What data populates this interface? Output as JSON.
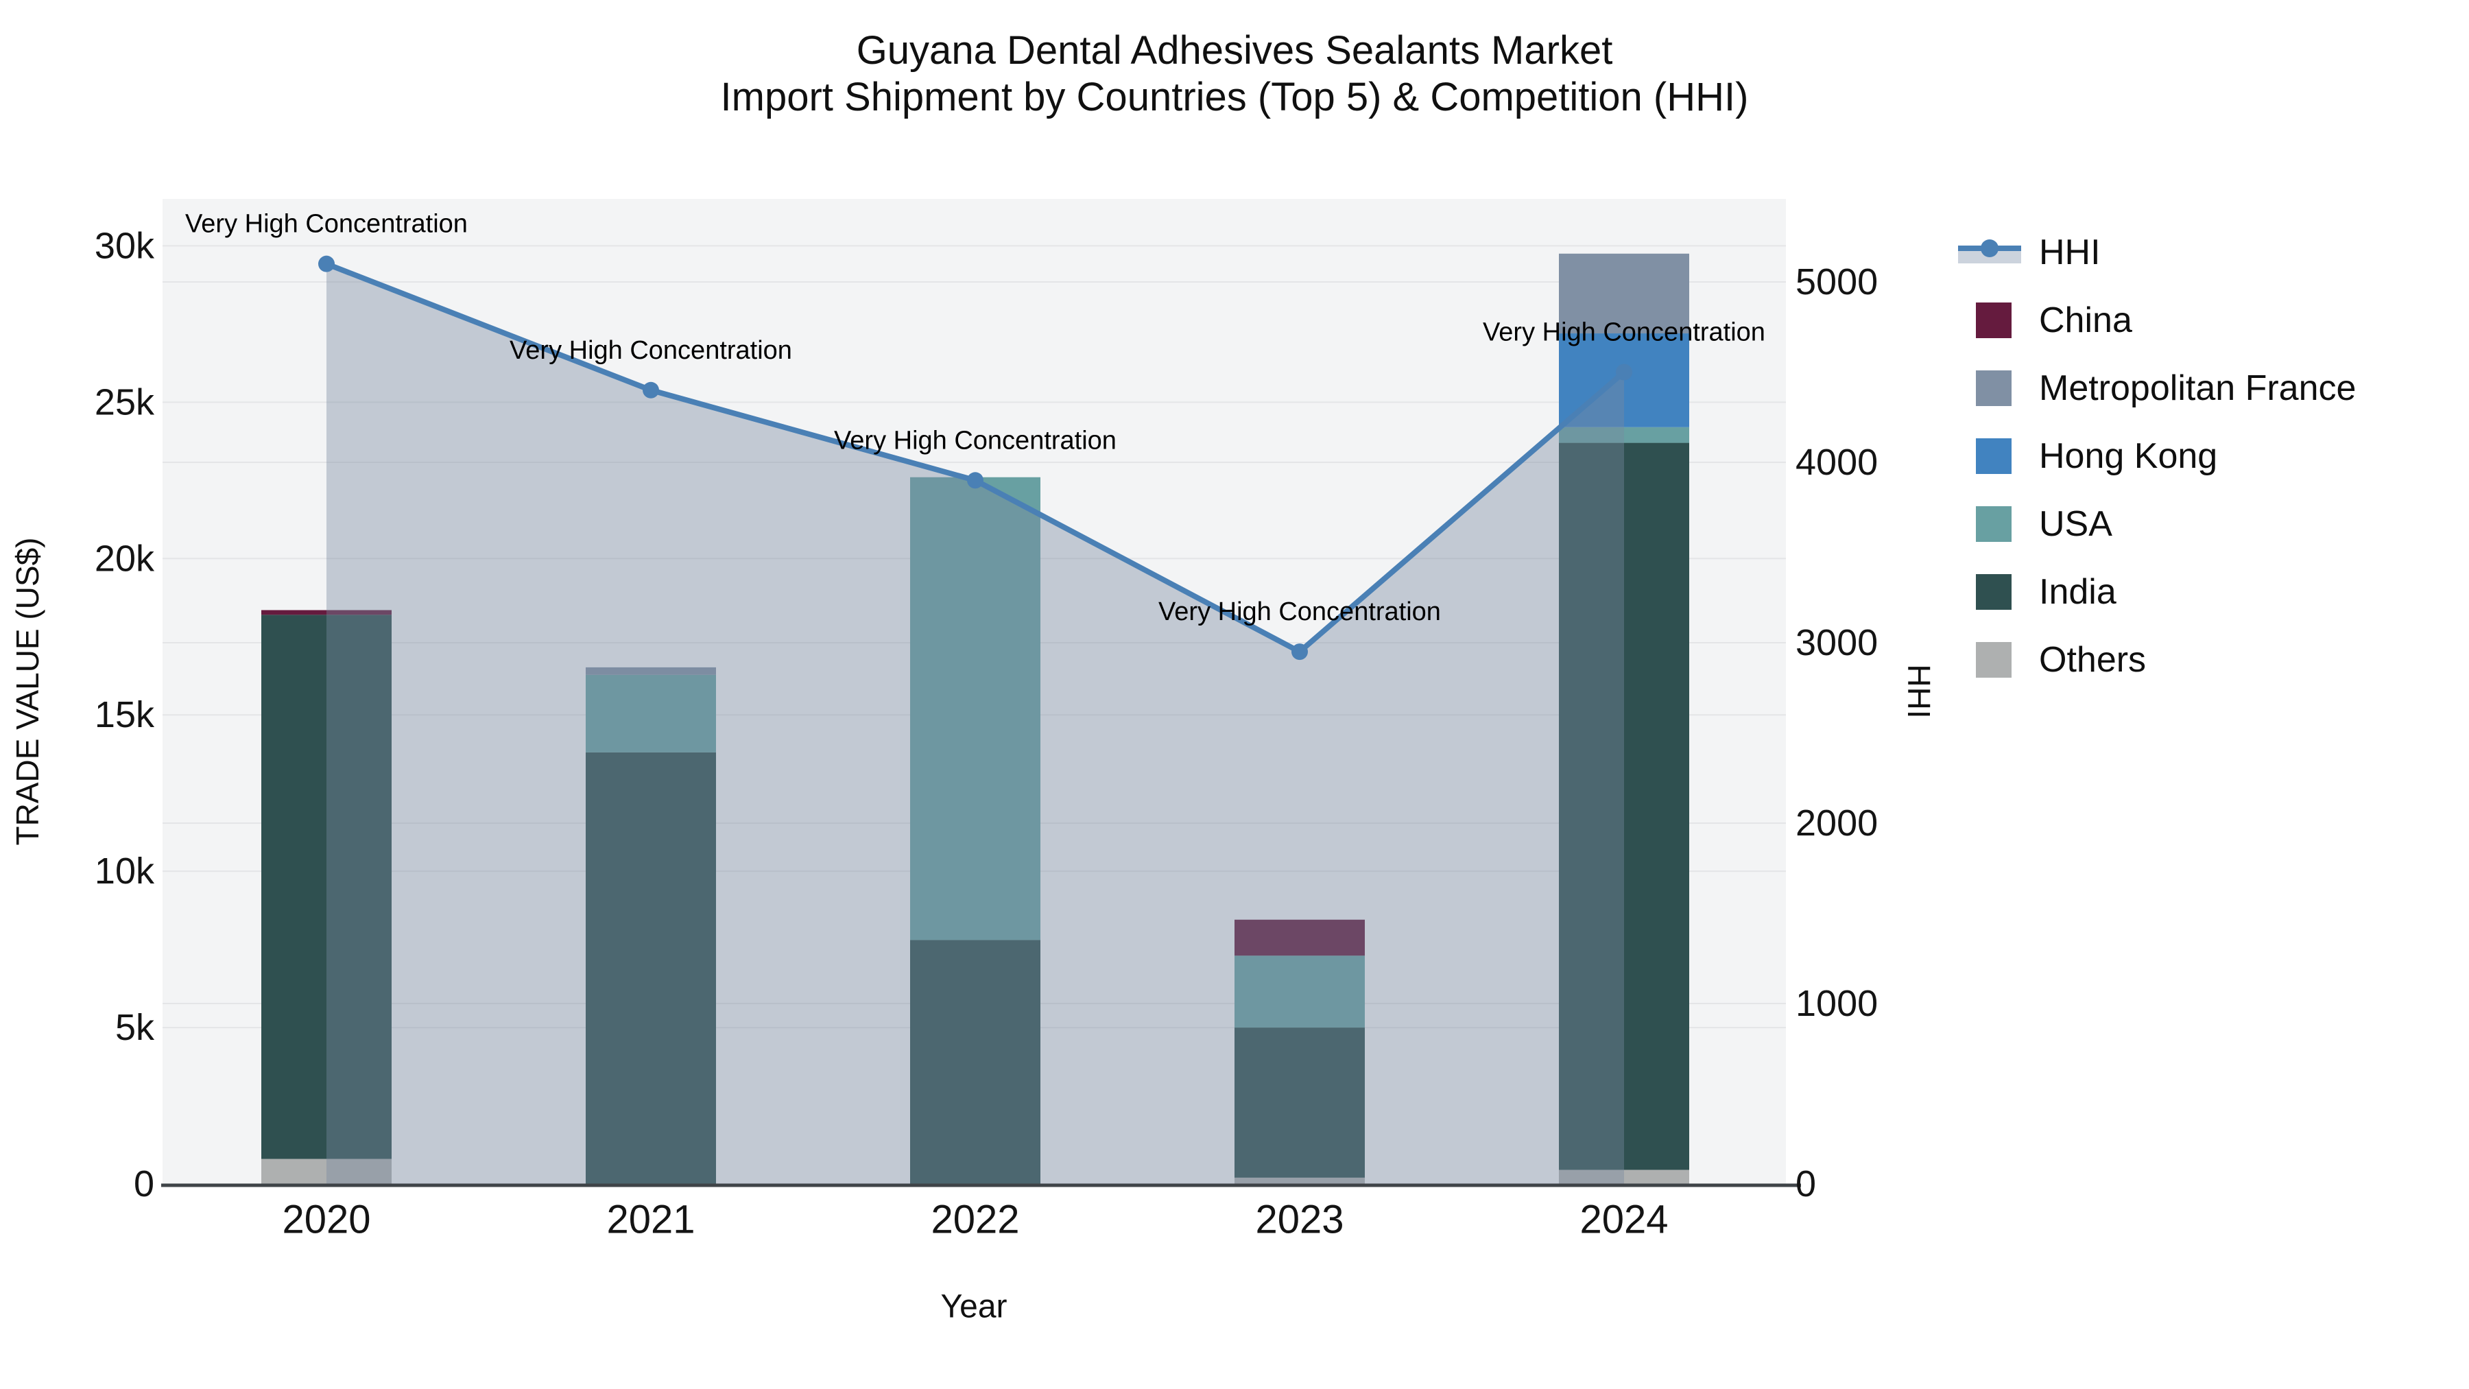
{
  "title": {
    "line1": "Guyana Dental Adhesives Sealants Market",
    "line2": "Import Shipment by Countries (Top 5) & Competition (HHI)"
  },
  "axes": {
    "x_title": "Year",
    "y_left_title": "TRADE VALUE (US$)",
    "y_right_title": "HHI"
  },
  "legend": {
    "items": [
      {
        "label": "HHI",
        "swatch": "line-marker",
        "color": "#4a80b5",
        "band_color": "#ccd3dd"
      },
      {
        "label": "China",
        "swatch": "square",
        "color": "#651b3e"
      },
      {
        "label": "Metropolitan France",
        "swatch": "square",
        "color": "#8090a4"
      },
      {
        "label": "Hong Kong",
        "swatch": "square",
        "color": "#4183c0"
      },
      {
        "label": "USA",
        "swatch": "square",
        "color": "#68a0a2"
      },
      {
        "label": "India",
        "swatch": "square",
        "color": "#2f5050"
      },
      {
        "label": "Others",
        "swatch": "square",
        "color": "#aeb0b0"
      }
    ]
  },
  "chart_data": {
    "type": "bar+line",
    "title": "Guyana Dental Adhesives Sealants Market — Import Shipment by Countries (Top 5) & Competition (HHI)",
    "categories": [
      "2020",
      "2021",
      "2022",
      "2023",
      "2024"
    ],
    "xlabel": "Year",
    "ylabel_left": "TRADE VALUE (US$)",
    "ylabel_right": "HHI",
    "bar_unit": "US$",
    "stack_order_bottom_to_top": [
      "Others",
      "India",
      "USA",
      "Hong Kong",
      "Metropolitan France",
      "China"
    ],
    "series": [
      {
        "name": "Others",
        "color": "#aeb0b0",
        "values": [
          800,
          0,
          0,
          200,
          450
        ]
      },
      {
        "name": "India",
        "color": "#2f5050",
        "values": [
          17400,
          13800,
          7800,
          4800,
          23250
        ]
      },
      {
        "name": "USA",
        "color": "#68a0a2",
        "values": [
          0,
          2480,
          14800,
          2300,
          500
        ]
      },
      {
        "name": "Hong Kong",
        "color": "#4183c0",
        "values": [
          0,
          0,
          0,
          0,
          3000
        ]
      },
      {
        "name": "Metropolitan France",
        "color": "#8090a4",
        "values": [
          0,
          240,
          0,
          0,
          2550
        ]
      },
      {
        "name": "China",
        "color": "#651b3e",
        "values": [
          150,
          0,
          0,
          1150,
          0
        ]
      }
    ],
    "bar_totals": [
      18350,
      16520,
      22600,
      8450,
      29750
    ],
    "line_series": {
      "name": "HHI",
      "values": [
        5100,
        4400,
        3900,
        2950,
        4500
      ],
      "color": "#4a80b5",
      "fill_color": "rgba(120,138,160,0.40)"
    },
    "point_annotations": [
      "Very High Concentration",
      "Very High Concentration",
      "Very High Concentration",
      "Very High Concentration",
      "Very High Concentration"
    ],
    "y_left": {
      "ticks": [
        "0",
        "5k",
        "10k",
        "15k",
        "20k",
        "25k",
        "30k"
      ],
      "tick_values": [
        0,
        5000,
        10000,
        15000,
        20000,
        25000,
        30000
      ],
      "range": [
        0,
        31500
      ]
    },
    "y_right": {
      "ticks": [
        "0",
        "1000",
        "2000",
        "3000",
        "4000",
        "5000"
      ],
      "tick_values": [
        0,
        1000,
        2000,
        3000,
        4000,
        5000
      ],
      "range": [
        0,
        5460
      ]
    },
    "grid": true,
    "legend_position": "right",
    "plot_bg": "#f3f4f5",
    "grid_color": "#e4e5e7",
    "axisline_color": "#3f4448"
  }
}
